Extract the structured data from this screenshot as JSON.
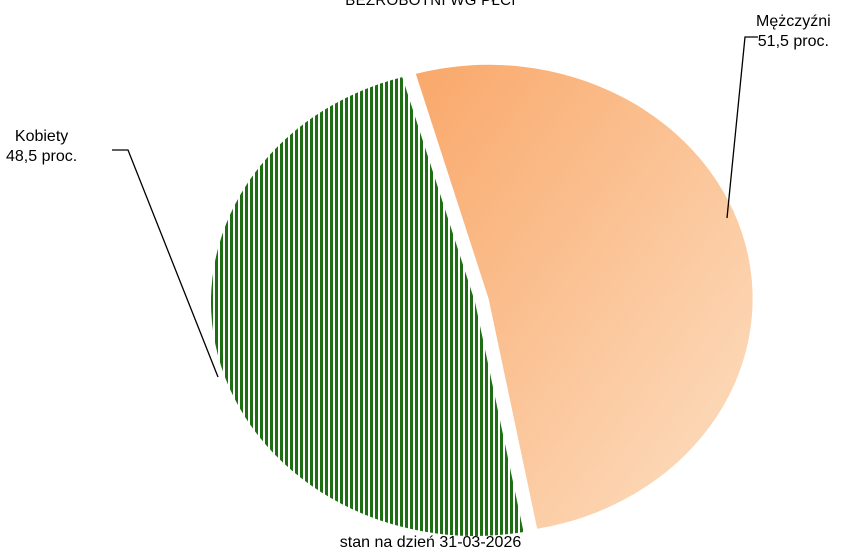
{
  "chart_data": {
    "type": "pie",
    "title": "BEZROBOTNI WG PŁCI",
    "footer": "stan na dzień 31-03-2026",
    "slices": [
      {
        "name": "Mężczyźni",
        "value": 51.5,
        "value_label": "51,5 proc.",
        "color": "#fcbf8a",
        "pattern": "gradient"
      },
      {
        "name": "Kobiety",
        "value": 48.5,
        "value_label": "48,5 proc.",
        "color": "#1e6e14",
        "pattern": "vertical-stripes"
      }
    ],
    "legend": "none"
  }
}
